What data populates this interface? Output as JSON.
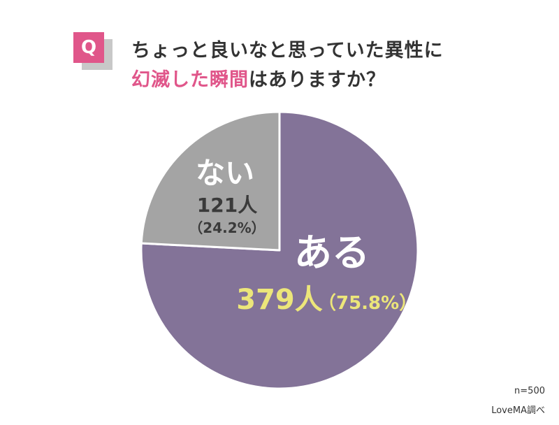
{
  "question": {
    "badge": "Q",
    "line1": "ちょっと良いなと思っていた異性に",
    "line2_highlight": "幻滅した瞬間",
    "line2_rest": "はありますか？"
  },
  "chart_data": {
    "type": "pie",
    "slices": [
      {
        "label": "ある",
        "count_text": "379人",
        "percent_text": "（75.8%）",
        "count": 379,
        "percent": 75.8,
        "color": "#837398",
        "text_color": "#ffffff",
        "value_color": "#ece67a"
      },
      {
        "label": "ない",
        "count_text": "121人",
        "percent_text": "（24.2%）",
        "count": 121,
        "percent": 24.2,
        "color": "#a4a4a4",
        "text_color": "#ffffff",
        "value_color": "#3a3a3a"
      }
    ]
  },
  "footer": {
    "n": "n=500",
    "source": "LoveMA調べ"
  }
}
